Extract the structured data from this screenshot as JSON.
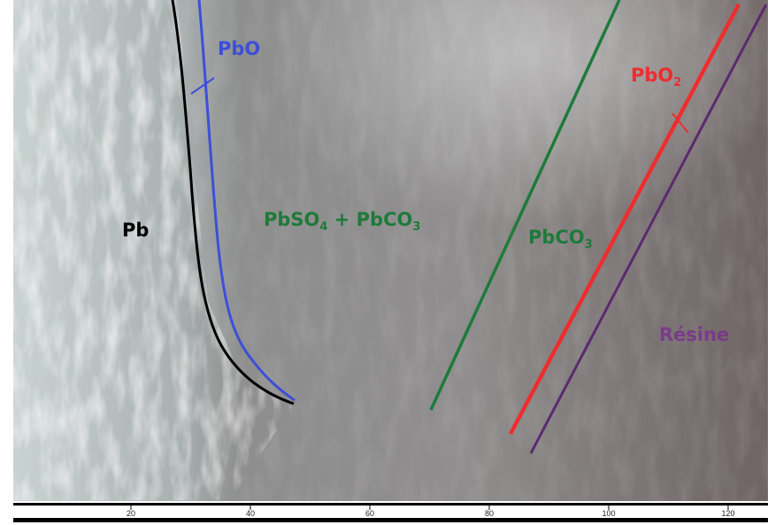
{
  "labels": {
    "pbo": "PbO",
    "pbo2": {
      "base": "PbO",
      "sub": "2"
    },
    "pb": "Pb",
    "mix": {
      "a": "PbSO",
      "a_sub": "4",
      "b": " + PbCO",
      "b_sub": "3"
    },
    "pbco3": {
      "base": "PbCO",
      "sub": "3"
    },
    "resin": "Résine"
  },
  "scale_bar": {
    "labels": [
      20,
      40,
      60,
      80,
      100,
      120
    ]
  }
}
